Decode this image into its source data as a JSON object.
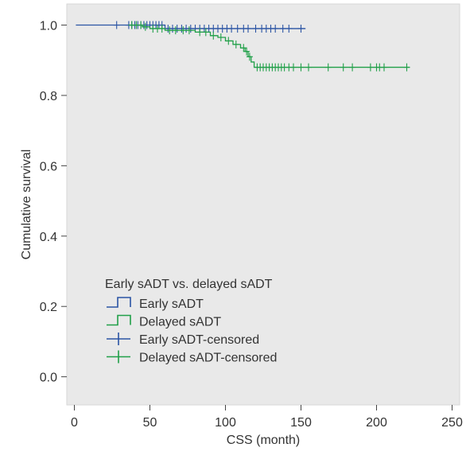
{
  "chart_data": {
    "type": "line",
    "xlabel": "CSS (month)",
    "ylabel": "Cumulative survival",
    "xlim": [
      -5,
      255
    ],
    "ylim": [
      -0.08,
      1.06
    ],
    "x_ticks": [
      0,
      50,
      100,
      150,
      200,
      250
    ],
    "y_ticks": [
      0.0,
      0.2,
      0.4,
      0.6,
      0.8,
      1.0
    ],
    "x_tick_labels": [
      "0",
      "50",
      "100",
      "150",
      "200",
      "250"
    ],
    "y_tick_labels": [
      "0.0",
      "0.2",
      "0.4",
      "0.6",
      "0.8",
      "1.0"
    ],
    "grid": false,
    "legend": {
      "title": "Early sADT vs. delayed sADT",
      "position": "bottom-left",
      "entries": [
        {
          "label": "Early sADT",
          "symbol": "step",
          "color": "#2b54a4"
        },
        {
          "label": "Delayed sADT",
          "symbol": "step",
          "color": "#21a049"
        },
        {
          "label": "Early sADT-censored",
          "symbol": "cross",
          "color": "#2b54a4"
        },
        {
          "label": "Delayed sADT-censored",
          "symbol": "cross",
          "color": "#21a049"
        }
      ]
    },
    "series": [
      {
        "name": "Early sADT",
        "color": "#2b54a4",
        "steps": [
          [
            1,
            1.0
          ],
          [
            60,
            0.99
          ],
          [
            153,
            0.99
          ]
        ],
        "censored": [
          {
            "x": 28,
            "y": 1.0
          },
          {
            "x": 36,
            "y": 1.0
          },
          {
            "x": 38,
            "y": 1.0
          },
          {
            "x": 40,
            "y": 1.0
          },
          {
            "x": 42,
            "y": 1.0
          },
          {
            "x": 44,
            "y": 1.0
          },
          {
            "x": 46,
            "y": 1.0
          },
          {
            "x": 48,
            "y": 1.0
          },
          {
            "x": 50,
            "y": 1.0
          },
          {
            "x": 52,
            "y": 1.0
          },
          {
            "x": 54,
            "y": 1.0
          },
          {
            "x": 56,
            "y": 1.0
          },
          {
            "x": 58,
            "y": 1.0
          },
          {
            "x": 62,
            "y": 0.99
          },
          {
            "x": 65,
            "y": 0.99
          },
          {
            "x": 68,
            "y": 0.99
          },
          {
            "x": 71,
            "y": 0.99
          },
          {
            "x": 74,
            "y": 0.99
          },
          {
            "x": 77,
            "y": 0.99
          },
          {
            "x": 80,
            "y": 0.99
          },
          {
            "x": 83,
            "y": 0.99
          },
          {
            "x": 86,
            "y": 0.99
          },
          {
            "x": 89,
            "y": 0.99
          },
          {
            "x": 92,
            "y": 0.99
          },
          {
            "x": 95,
            "y": 0.99
          },
          {
            "x": 98,
            "y": 0.99
          },
          {
            "x": 101,
            "y": 0.99
          },
          {
            "x": 104,
            "y": 0.99
          },
          {
            "x": 108,
            "y": 0.99
          },
          {
            "x": 112,
            "y": 0.99
          },
          {
            "x": 115,
            "y": 0.99
          },
          {
            "x": 120,
            "y": 0.99
          },
          {
            "x": 124,
            "y": 0.99
          },
          {
            "x": 127,
            "y": 0.99
          },
          {
            "x": 130,
            "y": 0.99
          },
          {
            "x": 133,
            "y": 0.99
          },
          {
            "x": 138,
            "y": 0.99
          },
          {
            "x": 142,
            "y": 0.99
          },
          {
            "x": 150,
            "y": 0.99
          }
        ]
      },
      {
        "name": "Delayed sADT",
        "color": "#21a049",
        "steps": [
          [
            36,
            1.0
          ],
          [
            45,
            0.995
          ],
          [
            50,
            0.99
          ],
          [
            60,
            0.985
          ],
          [
            80,
            0.98
          ],
          [
            90,
            0.97
          ],
          [
            95,
            0.965
          ],
          [
            100,
            0.955
          ],
          [
            105,
            0.945
          ],
          [
            110,
            0.935
          ],
          [
            113,
            0.925
          ],
          [
            115,
            0.91
          ],
          [
            117,
            0.895
          ],
          [
            119,
            0.88
          ],
          [
            222,
            0.88
          ]
        ],
        "censored": [
          {
            "x": 38,
            "y": 1.0
          },
          {
            "x": 41,
            "y": 1.0
          },
          {
            "x": 44,
            "y": 1.0
          },
          {
            "x": 47,
            "y": 0.995
          },
          {
            "x": 52,
            "y": 0.99
          },
          {
            "x": 55,
            "y": 0.99
          },
          {
            "x": 58,
            "y": 0.99
          },
          {
            "x": 63,
            "y": 0.985
          },
          {
            "x": 67,
            "y": 0.985
          },
          {
            "x": 72,
            "y": 0.985
          },
          {
            "x": 76,
            "y": 0.985
          },
          {
            "x": 83,
            "y": 0.98
          },
          {
            "x": 87,
            "y": 0.98
          },
          {
            "x": 92,
            "y": 0.97
          },
          {
            "x": 97,
            "y": 0.965
          },
          {
            "x": 102,
            "y": 0.955
          },
          {
            "x": 107,
            "y": 0.945
          },
          {
            "x": 112,
            "y": 0.935
          },
          {
            "x": 114,
            "y": 0.925
          },
          {
            "x": 116,
            "y": 0.91
          },
          {
            "x": 121,
            "y": 0.88
          },
          {
            "x": 123,
            "y": 0.88
          },
          {
            "x": 125,
            "y": 0.88
          },
          {
            "x": 127,
            "y": 0.88
          },
          {
            "x": 129,
            "y": 0.88
          },
          {
            "x": 131,
            "y": 0.88
          },
          {
            "x": 133,
            "y": 0.88
          },
          {
            "x": 135,
            "y": 0.88
          },
          {
            "x": 137,
            "y": 0.88
          },
          {
            "x": 139,
            "y": 0.88
          },
          {
            "x": 142,
            "y": 0.88
          },
          {
            "x": 145,
            "y": 0.88
          },
          {
            "x": 150,
            "y": 0.88
          },
          {
            "x": 155,
            "y": 0.88
          },
          {
            "x": 168,
            "y": 0.88
          },
          {
            "x": 178,
            "y": 0.88
          },
          {
            "x": 184,
            "y": 0.88
          },
          {
            "x": 196,
            "y": 0.88
          },
          {
            "x": 200,
            "y": 0.88
          },
          {
            "x": 202,
            "y": 0.88
          },
          {
            "x": 205,
            "y": 0.88
          },
          {
            "x": 220,
            "y": 0.88
          }
        ]
      }
    ]
  }
}
